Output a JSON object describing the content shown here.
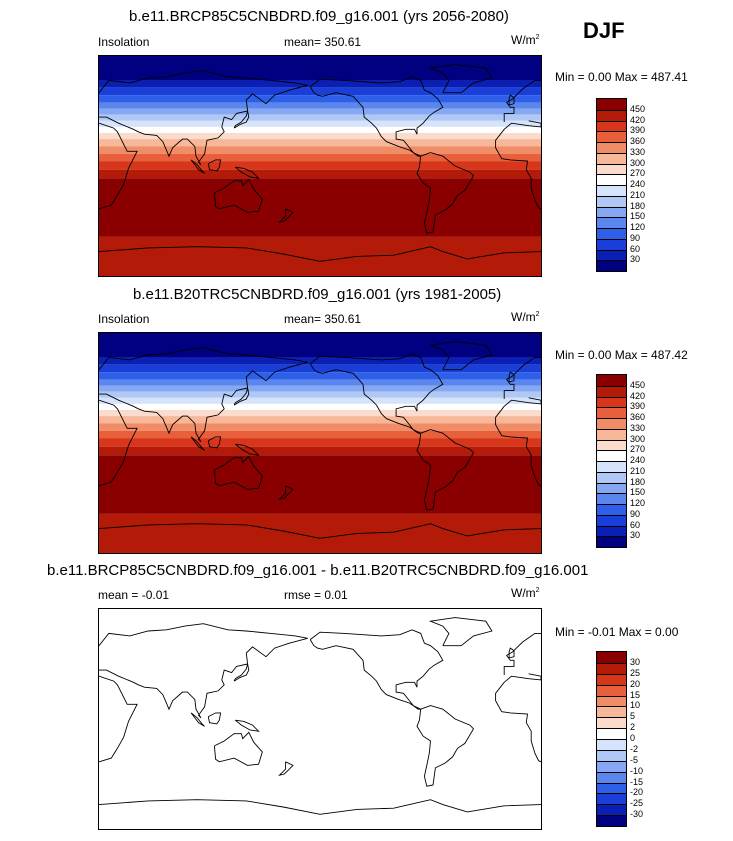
{
  "season": "DJF",
  "colors": {
    "insolation": [
      "#000080",
      "#0a1fb5",
      "#1a3fd8",
      "#2e5fe8",
      "#5a86ee",
      "#86a8f2",
      "#b0c8f6",
      "#d6e4fb",
      "#ffffff",
      "#fbdccc",
      "#f7b899",
      "#f08c66",
      "#e85f3c",
      "#d8361a",
      "#b31a08",
      "#8a0000"
    ],
    "diff": [
      "#000080",
      "#0a1fb5",
      "#1a3fd8",
      "#2e5fe8",
      "#5a86ee",
      "#86a8f2",
      "#b0c8f6",
      "#d6e4fb",
      "#ffffff",
      "#fbdccc",
      "#f7b899",
      "#f08c66",
      "#e85f3c",
      "#d8361a",
      "#b31a08",
      "#8a0000"
    ]
  },
  "panels": [
    {
      "title": "b.e11.BRCP85C5CNBDRD.f09_g16.001 (yrs 2056-2080)",
      "left_label": "Insolation",
      "center_label": "mean= 350.61",
      "units": "W/m",
      "units_sup": "2",
      "minmax": "Min =   0.00 Max = 487.41",
      "ticks": [
        "450",
        "420",
        "390",
        "360",
        "330",
        "300",
        "270",
        "240",
        "210",
        "180",
        "150",
        "120",
        "90",
        "60",
        "30"
      ]
    },
    {
      "title": "b.e11.B20TRC5CNBDRD.f09_g16.001 (yrs 1981-2005)",
      "left_label": "Insolation",
      "center_label": "mean= 350.61",
      "units": "W/m",
      "units_sup": "2",
      "minmax": "Min =   0.00 Max = 487.42",
      "ticks": [
        "450",
        "420",
        "390",
        "360",
        "330",
        "300",
        "270",
        "240",
        "210",
        "180",
        "150",
        "120",
        "90",
        "60",
        "30"
      ]
    },
    {
      "title": "b.e11.BRCP85C5CNBDRD.f09_g16.001 - b.e11.B20TRC5CNBDRD.f09_g16.001",
      "left_label": "mean =  -0.01",
      "center_label": "rmse =   0.01",
      "units": "W/m",
      "units_sup": "2",
      "minmax": "Min =  -0.01 Max =   0.00",
      "ticks": [
        "30",
        "25",
        "20",
        "15",
        "10",
        "5",
        "2",
        "0",
        "-2",
        "-5",
        "-10",
        "-15",
        "-20",
        "-25",
        "-30"
      ]
    }
  ]
}
